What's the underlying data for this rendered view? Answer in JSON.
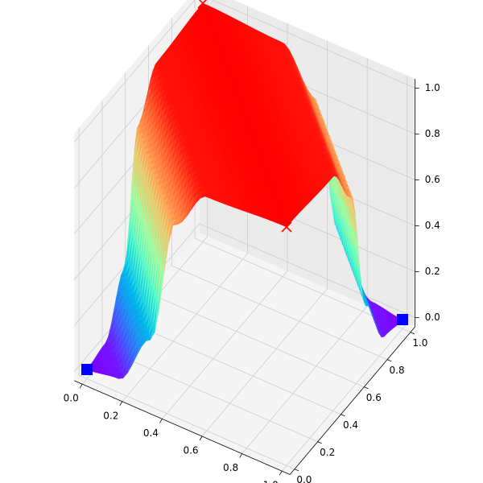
{
  "chart_data": {
    "type": "surface3d",
    "title": "",
    "xlabel": "",
    "ylabel": "",
    "zlabel": "",
    "xlim": [
      0,
      1
    ],
    "ylim": [
      0,
      1
    ],
    "zlim": [
      0,
      1
    ],
    "grid": true,
    "colormap": "rainbow",
    "x_ticks": [
      "0.0",
      "0.2",
      "0.4",
      "0.6",
      "0.8",
      "1.0"
    ],
    "y_ticks": [
      "0.0",
      "0.2",
      "0.4",
      "0.6",
      "0.8",
      "1.0"
    ],
    "z_ticks": [
      "0.0",
      "0.2",
      "0.4",
      "0.6",
      "0.8",
      "1.0"
    ],
    "surface": {
      "description_of_profile": "z depends on the coordinate t running from corner (0,0) to corner (1,1); rises from 0 to a plateau of ~1 and falls back to 0",
      "profile_t": [
        0.0,
        0.08,
        0.16,
        0.22,
        0.3,
        0.5,
        0.7,
        0.78,
        0.84,
        0.92,
        1.0
      ],
      "profile_z": [
        0.0,
        0.02,
        0.25,
        0.8,
        0.98,
        1.0,
        0.98,
        0.8,
        0.25,
        0.02,
        0.0
      ]
    },
    "markers": [
      {
        "shape": "x",
        "color": "#ff0000",
        "points": [
          [
            0,
            1,
            1
          ],
          [
            1,
            0,
            1
          ]
        ]
      },
      {
        "shape": "square",
        "color": "#0000ff",
        "points": [
          [
            0,
            0,
            0
          ],
          [
            1,
            1,
            0
          ]
        ]
      }
    ]
  }
}
